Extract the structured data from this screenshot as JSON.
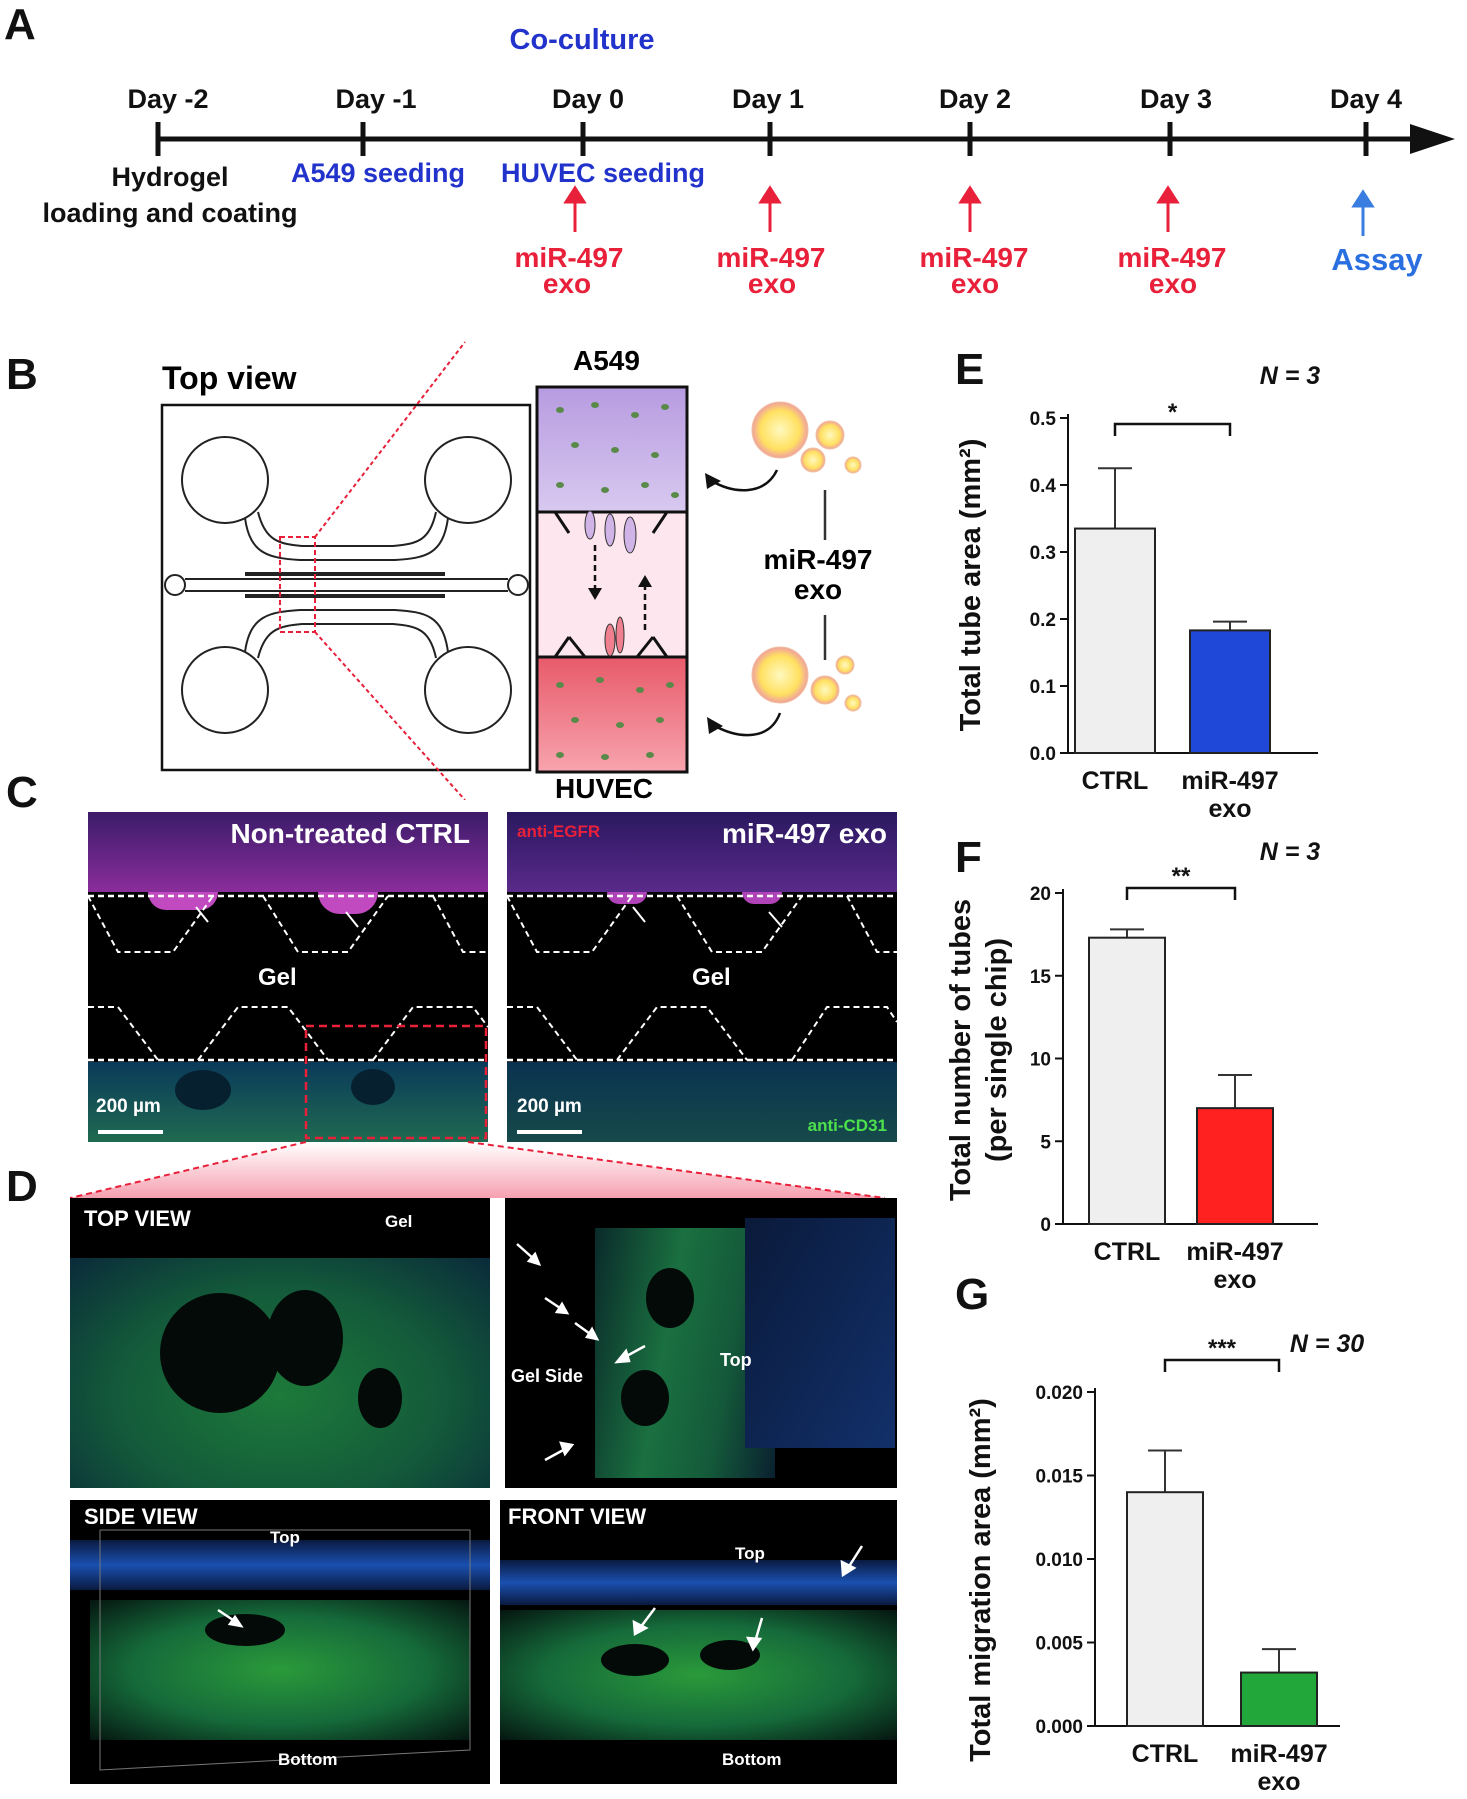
{
  "panels": {
    "a": "A",
    "b": "B",
    "c": "C",
    "d": "D",
    "e": "E",
    "f": "F",
    "g": "G"
  },
  "timeline": {
    "header": "Co-culture",
    "days": [
      "Day -2",
      "Day -1",
      "Day 0",
      "Day 1",
      "Day 2",
      "Day 3",
      "Day 4"
    ],
    "hydrogel_line1": "Hydrogel",
    "hydrogel_line2": "loading and coating",
    "a549_seeding": "A549 seeding",
    "huvec_seeding": "HUVEC seeding",
    "treatment_line1": "miR-497",
    "treatment_line2": "exo",
    "assay": "Assay"
  },
  "schematic": {
    "top_view": "Top view",
    "a549": "A549",
    "huvec": "HUVEC",
    "exo_line1": "miR-497",
    "exo_line2": "exo"
  },
  "images_c": {
    "left_title": "Non-treated CTRL",
    "right_title": "miR-497 exo",
    "gel": "Gel",
    "scale": "200 µm",
    "anti_egfr": "anti-EGFR",
    "anti_cd31": "anti-CD31"
  },
  "images_d": {
    "top_view": "TOP  VIEW",
    "side_view": "SIDE VIEW",
    "front_view": "FRONT  VIEW",
    "gel": "Gel",
    "gel_side": "Gel  Side",
    "top": "Top",
    "bottom": "Bottom"
  },
  "colors": {
    "ctrl_bar": "#efefef",
    "blue_bar": "#2048d8",
    "red_bar": "#ff2020",
    "green_bar": "#22a83a",
    "timeline_red": "#e8203a",
    "timeline_blue": "#2233cc"
  },
  "chart_data": [
    {
      "panel": "E",
      "type": "bar",
      "categories": [
        "CTRL",
        "miR-497 exo"
      ],
      "values": [
        0.335,
        0.183
      ],
      "errors": [
        0.09,
        0.013
      ],
      "ylabel": "Total tube area (mm²)",
      "ylim": [
        0,
        0.5
      ],
      "ticks": [
        "0.0",
        "0.1",
        "0.2",
        "0.3",
        "0.4",
        "0.5"
      ],
      "n_label": "N = 3",
      "significance": "*"
    },
    {
      "panel": "F",
      "type": "bar",
      "categories": [
        "CTRL",
        "miR-497 exo"
      ],
      "values": [
        17.3,
        7.0
      ],
      "errors": [
        0.5,
        2.0
      ],
      "ylabel_line1": "Total number of tubes",
      "ylabel_line2": "(per single chip)",
      "ylim": [
        0,
        20
      ],
      "ticks": [
        "0",
        "5",
        "10",
        "15",
        "20"
      ],
      "n_label": "N = 3",
      "significance": "**"
    },
    {
      "panel": "G",
      "type": "bar",
      "categories": [
        "CTRL",
        "miR-497 exo"
      ],
      "values": [
        0.014,
        0.0032
      ],
      "errors": [
        0.0025,
        0.0014
      ],
      "ylabel": "Total migration area (mm²)",
      "ylim": [
        0,
        0.02
      ],
      "ticks": [
        "0.000",
        "0.005",
        "0.010",
        "0.015",
        "0.020"
      ],
      "n_label": "N = 30",
      "significance": "***"
    }
  ]
}
